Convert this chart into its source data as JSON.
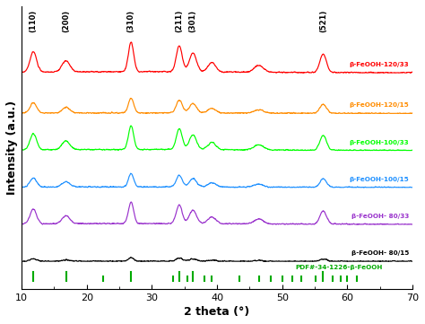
{
  "xlabel": "2 theta (°)",
  "ylabel": "Intensity (a.u.)",
  "xlim": [
    10,
    70
  ],
  "series_labels": [
    "β-FeOOH-120/33",
    "β-FeOOH-120/15",
    "β-FeOOH-100/33",
    "β-FeOOH-100/15",
    "β-FeOOH- 80/33",
    "β-FeOOH- 80/15"
  ],
  "series_colors": [
    "red",
    "darkorange",
    "lime",
    "dodgerblue",
    "darkorchid",
    "black"
  ],
  "offsets": [
    5.2,
    4.1,
    3.1,
    2.1,
    1.1,
    0.1
  ],
  "peak_positions": [
    11.8,
    16.8,
    26.8,
    34.2,
    36.3,
    39.2,
    46.4,
    56.3
  ],
  "peak_heights": [
    0.55,
    0.3,
    0.8,
    0.7,
    0.5,
    0.25,
    0.18,
    0.5
  ],
  "peak_widths": [
    0.5,
    0.6,
    0.4,
    0.45,
    0.55,
    0.6,
    0.7,
    0.5
  ],
  "peak_labels": [
    "(110)",
    "(200)",
    "(310)",
    "(211)",
    "(301)",
    "",
    "",
    "(521)"
  ],
  "pdf_tick_positions": [
    11.8,
    16.8,
    22.5,
    26.8,
    33.2,
    34.2,
    35.5,
    36.3,
    38.0,
    39.2,
    43.5,
    46.4,
    48.2,
    50.0,
    51.5,
    53.0,
    55.2,
    56.3,
    57.8,
    59.0,
    60.0,
    61.5
  ],
  "pdf_tick_heights_big": [
    11.8,
    16.8,
    26.8,
    34.2,
    36.3,
    56.3
  ],
  "pdf_label": "PDF#-34-1226-β-FeOOH",
  "pdf_color": "#00aa00",
  "background_color": "white",
  "noise_amplitude": 0.018,
  "scales": [
    1.0,
    0.5,
    0.8,
    0.45,
    0.72,
    0.12
  ]
}
